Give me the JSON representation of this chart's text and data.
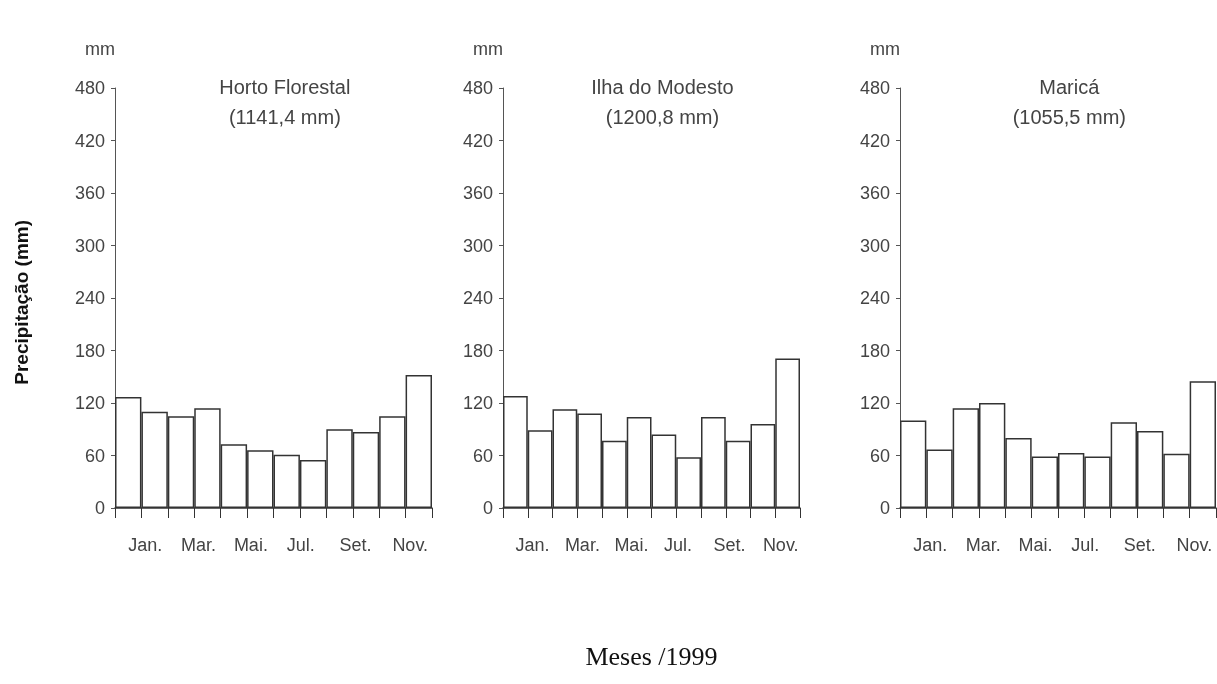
{
  "chart_data": [
    {
      "type": "bar",
      "title": "Horto Florestal",
      "subtitle": "(1141,4 mm)",
      "ylabel": "mm",
      "annotations": [
        "Precipitação (mm)"
      ],
      "categories": [
        "Jan.",
        null,
        "Mar.",
        null,
        "Mai.",
        null,
        "Jul.",
        null,
        "Set.",
        null,
        "Nov.",
        null
      ],
      "values": [
        127,
        110,
        105,
        114,
        73,
        66,
        61,
        55,
        90,
        87,
        105,
        152
      ],
      "color": "#ffffff",
      "ylim": [
        0,
        480
      ],
      "yticks": [
        0,
        60,
        120,
        180,
        240,
        300,
        360,
        420,
        480
      ]
    },
    {
      "type": "bar",
      "title": "Ilha do Modesto",
      "subtitle": "(1200,8 mm)",
      "ylabel": "mm",
      "xlabel": "Meses /1999",
      "categories": [
        "Jan.",
        null,
        "Mar.",
        null,
        "Mai.",
        null,
        "Jul.",
        null,
        "Set.",
        null,
        "Nov.",
        null
      ],
      "values": [
        128,
        89,
        113,
        108,
        77,
        104,
        84,
        58,
        104,
        77,
        96,
        171
      ],
      "color": "#ffffff",
      "ylim": [
        0,
        480
      ],
      "yticks": [
        0,
        60,
        120,
        180,
        240,
        300,
        360,
        420,
        480
      ]
    },
    {
      "type": "bar",
      "title": "Maricá",
      "subtitle": "(1055,5 mm)",
      "ylabel": "mm",
      "categories": [
        "Jan.",
        null,
        "Mar.",
        null,
        "Mai.",
        null,
        "Jul.",
        null,
        "Set.",
        null,
        "Nov.",
        null
      ],
      "values": [
        100,
        67,
        114,
        120,
        80,
        59,
        63,
        59,
        98,
        88,
        62,
        145
      ],
      "color": "#ffffff",
      "ylim": [
        0,
        480
      ],
      "yticks": [
        0,
        60,
        120,
        180,
        240,
        300,
        360,
        420,
        480
      ]
    }
  ]
}
